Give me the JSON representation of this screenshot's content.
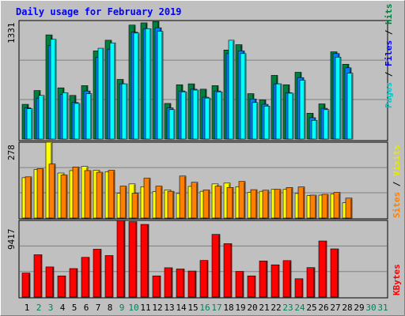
{
  "chart_data": [
    {
      "type": "bar",
      "title": "Daily usage for February 2019",
      "categories": [
        "1",
        "2",
        "3",
        "4",
        "5",
        "6",
        "7",
        "8",
        "9",
        "10",
        "11",
        "12",
        "13",
        "14",
        "15",
        "16",
        "17",
        "18",
        "19",
        "20",
        "21",
        "22",
        "23",
        "24",
        "25",
        "26",
        "27",
        "28",
        "29",
        "30",
        "31"
      ],
      "weekend_days": [
        "2",
        "3",
        "9",
        "10",
        "16",
        "17",
        "23",
        "24",
        "30",
        "31"
      ],
      "ylim": [
        0,
        1331
      ],
      "ytick_label": "1331",
      "right_label": {
        "parts": [
          "Pages",
          " / ",
          "Files",
          " / ",
          "Hits"
        ]
      },
      "series": [
        {
          "name": "Hits",
          "color": "#008040",
          "values": [
            390,
            545,
            1170,
            575,
            490,
            600,
            990,
            1110,
            670,
            1280,
            1305,
            1320,
            400,
            610,
            620,
            560,
            600,
            1000,
            1060,
            510,
            440,
            715,
            610,
            750,
            290,
            395,
            980,
            840,
            0,
            0,
            0
          ]
        },
        {
          "name": "Files",
          "color": "#0080ff",
          "values": [
            350,
            460,
            1050,
            500,
            410,
            540,
            920,
            1010,
            620,
            1200,
            1240,
            1250,
            350,
            540,
            560,
            470,
            540,
            960,
            990,
            450,
            390,
            620,
            520,
            690,
            240,
            345,
            960,
            800,
            0,
            0,
            0
          ]
        },
        {
          "name": "Pages",
          "color": "#00ffff",
          "values": [
            340,
            490,
            1120,
            520,
            400,
            510,
            1020,
            1080,
            620,
            1190,
            1240,
            1210,
            330,
            530,
            550,
            460,
            530,
            1110,
            960,
            410,
            370,
            620,
            515,
            660,
            210,
            330,
            920,
            740,
            0,
            0,
            0
          ]
        }
      ]
    },
    {
      "type": "bar",
      "ylim": [
        0,
        278
      ],
      "ytick_label": "278",
      "right_label": {
        "parts": [
          "Sites",
          " / ",
          "Visits"
        ]
      },
      "series": [
        {
          "name": "Visits",
          "color": "#ffff00",
          "values": [
            148,
            178,
            278,
            165,
            174,
            189,
            175,
            170,
            91,
            125,
            115,
            97,
            103,
            90,
            116,
            98,
            125,
            128,
            115,
            94,
            98,
            105,
            105,
            90,
            82,
            84,
            88,
            56,
            0,
            0,
            0
          ]
        },
        {
          "name": "Sites",
          "color": "#ff8000",
          "values": [
            151,
            181,
            198,
            158,
            187,
            174,
            168,
            175,
            117,
            91,
            146,
            117,
            98,
            154,
            131,
            103,
            117,
            112,
            134,
            104,
            102,
            105,
            112,
            114,
            84,
            87,
            94,
            73,
            0,
            0,
            0
          ]
        }
      ]
    },
    {
      "type": "bar",
      "ylim": [
        0,
        9417
      ],
      "ytick_label": "9417",
      "right_label": {
        "parts": [
          "KBytes"
        ]
      },
      "series": [
        {
          "name": "KBytes",
          "color": "#ff0000",
          "values": [
            2950,
            5200,
            3700,
            2600,
            3500,
            4880,
            5880,
            5100,
            9417,
            9260,
            8930,
            2600,
            3600,
            3450,
            3200,
            4500,
            7700,
            6560,
            3150,
            2600,
            4430,
            3960,
            4480,
            2250,
            3620,
            6890,
            5920,
            0,
            0,
            0,
            0
          ]
        }
      ]
    }
  ],
  "colors": {
    "background": "#c0c0c0",
    "title": "#0000ff",
    "weekday_label": "#000000",
    "weekend_label": "#00805c"
  }
}
